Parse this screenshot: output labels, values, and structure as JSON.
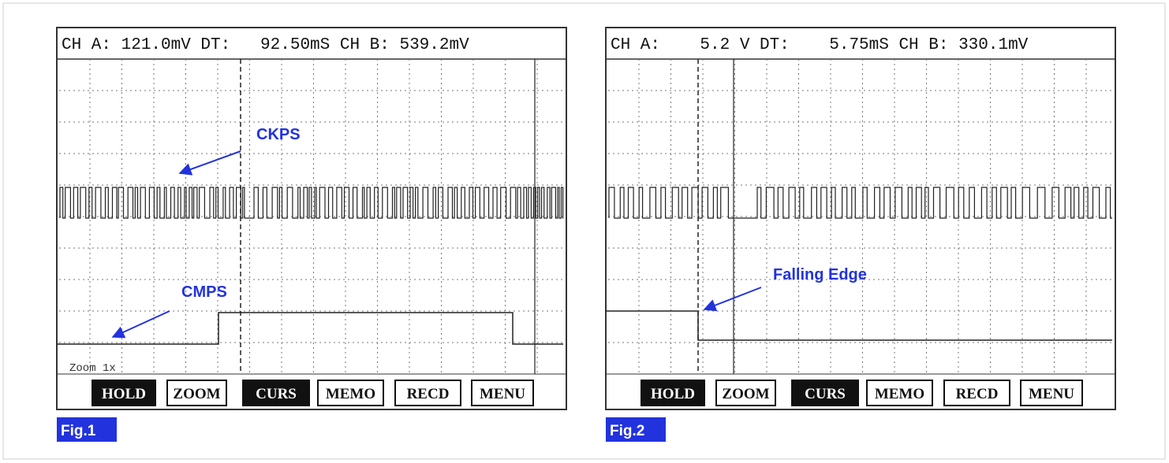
{
  "figures": [
    {
      "header": "CH A: 121.0mV DT:   92.50mS CH B: 539.2mV",
      "annotations": [
        "CKPS",
        "CMPS"
      ],
      "zoom": "Zoom 1x",
      "buttons": [
        "HOLD",
        "ZOOM",
        "CURS",
        "MEMO",
        "RECD",
        "MENU"
      ],
      "label": "Fig.1"
    },
    {
      "header": "CH A:    5.2 V DT:    5.75mS CH B: 330.1mV",
      "annotations": [
        "Falling Edge"
      ],
      "buttons": [
        "HOLD",
        "ZOOM",
        "CURS",
        "MEMO",
        "RECD",
        "MENU"
      ],
      "label": "Fig.2"
    }
  ]
}
